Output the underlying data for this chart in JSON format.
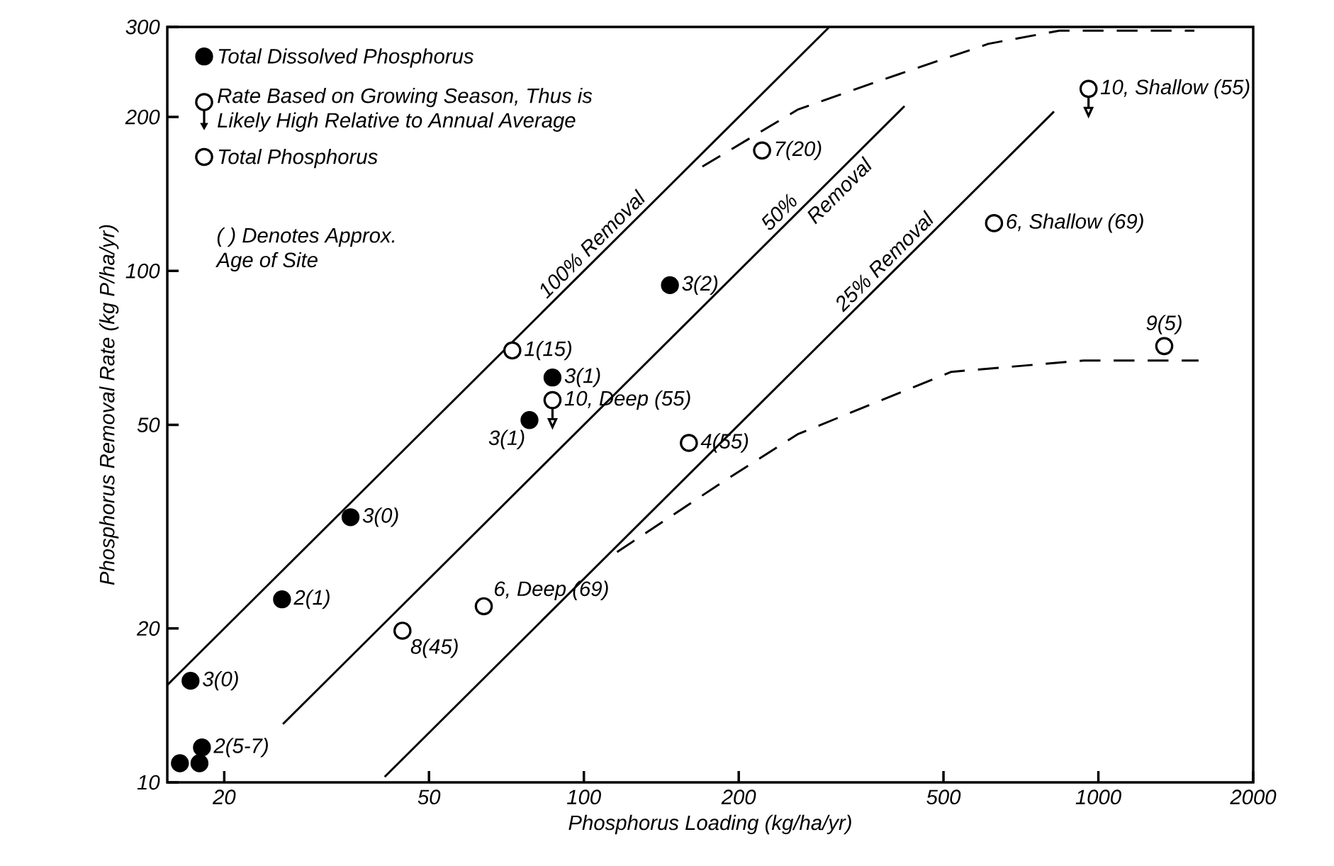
{
  "chart_data": {
    "type": "scatter",
    "xlabel": "Phosphorus Loading (kg/ha/yr)",
    "ylabel": "Phosphorus Removal Rate (kg P/ha/yr)",
    "log": "xy",
    "legend": "top left",
    "xlim": [
      15.5,
      2000
    ],
    "ylim": [
      10,
      300
    ],
    "xticks": [
      20,
      50,
      100,
      200,
      500,
      1000,
      2000
    ],
    "yticks": [
      10,
      20,
      50,
      100,
      200,
      300
    ],
    "series": [
      {
        "name": "Total Dissolved Phosphorus",
        "marker": "circle",
        "color": "#000000",
        "x": [
          17.2,
          25.9,
          35.2,
          16.4,
          17.9,
          18.1,
          78.4,
          86.9,
          147
        ],
        "values": [
          15.8,
          22.8,
          33.0,
          10.9,
          10.9,
          11.7,
          51.1,
          61.9,
          93.8
        ],
        "value_labels": [
          "3(0)",
          "2(1)",
          "3(0)",
          null,
          null,
          "2(5-7)",
          "3(1)",
          "3(1)",
          "3(2)"
        ]
      },
      {
        "name": "Rate Based on Growing Season, Thus is Likely High Relative to Annual Average",
        "marker": "circle_arrow",
        "color": "#000000",
        "x": [
          86.9,
          957
        ],
        "values": [
          55.9,
          227
        ],
        "value_labels": [
          "10, Deep (55)",
          "10, Shallow (55)"
        ]
      },
      {
        "name": "Total Phosphorus",
        "marker": "circle_open",
        "color": "#000000",
        "x": [
          72.6,
          44.4,
          63.9,
          160,
          222,
          627,
          1343
        ],
        "values": [
          69.9,
          19.8,
          22.1,
          46.1,
          172,
          124,
          71.3
        ],
        "value_labels": [
          "1(15)",
          "8(45)",
          "6, Deep (69)",
          "4(55)",
          "7(20)",
          "6, Shallow (69)",
          "9(5)"
        ]
      },
      {
        "type": "line",
        "line_style": "solid",
        "marker": "none",
        "color": "#000000",
        "x": [
          15.5,
          300
        ],
        "values": [
          15.5,
          300
        ]
      },
      {
        "type": "line",
        "line_style": "solid",
        "marker": "none",
        "color": "#000000",
        "x": [
          26,
          420
        ],
        "values": [
          13,
          210
        ]
      },
      {
        "type": "line",
        "line_style": "solid",
        "marker": "none",
        "color": "#000000",
        "x": [
          41,
          820
        ],
        "values": [
          10.25,
          205
        ]
      },
      {
        "type": "line",
        "line_style": "dashed",
        "marker": "none",
        "color": "#000000",
        "x": [
          170,
          261,
          383,
          611,
          840,
          1537
        ],
        "values": [
          160,
          207,
          237,
          278,
          295,
          295
        ]
      },
      {
        "type": "line",
        "line_style": "dashed",
        "marker": "none",
        "color": "#000000",
        "x": [
          116,
          187,
          261,
          518,
          936,
          1566
        ],
        "values": [
          28.2,
          38.8,
          48,
          63.5,
          66.8,
          66.8
        ]
      }
    ],
    "annotations": [
      {
        "text": "100% Removal",
        "x": 108,
        "y": 108
      },
      {
        "text": "50%",
        "x": 250,
        "y": 125
      },
      {
        "text": "Removal",
        "x": 300,
        "y": 150
      },
      {
        "text": "25% Removal",
        "x": 400,
        "y": 100
      },
      "( ) Denotes Approx. Age of Site"
    ]
  }
}
